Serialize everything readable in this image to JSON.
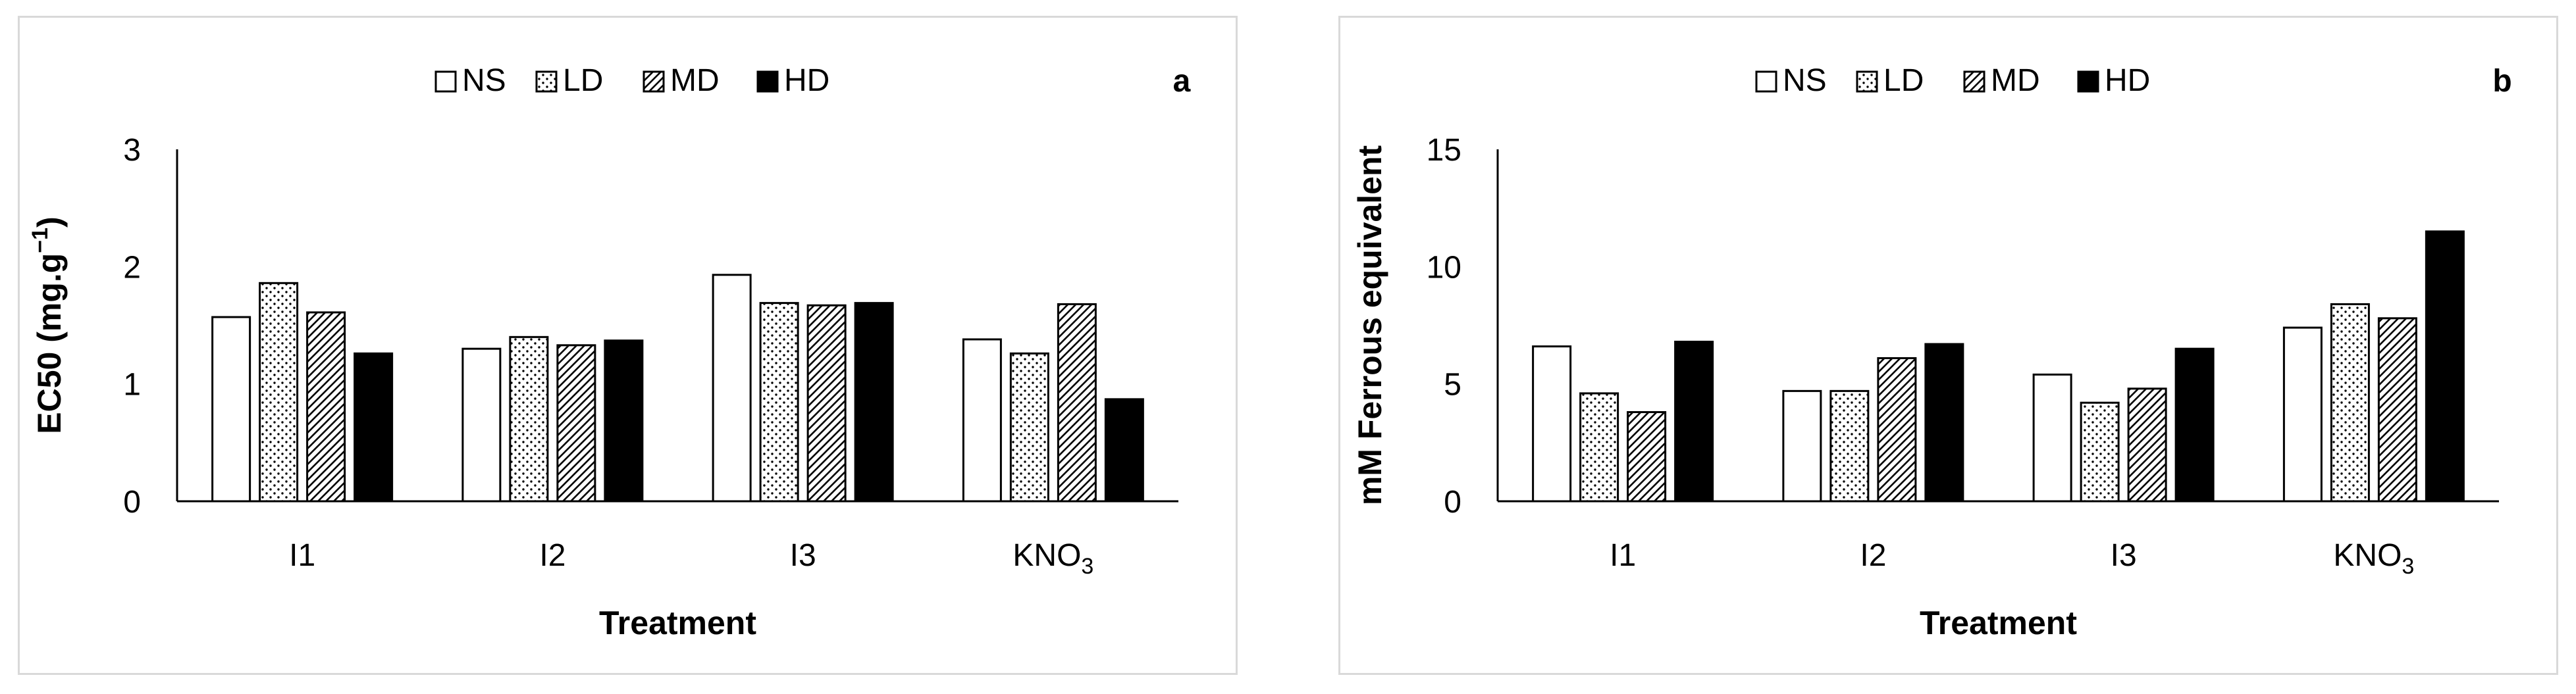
{
  "chart_data": [
    {
      "type": "bar",
      "panel_label": "a",
      "title": "",
      "xlabel": "Treatment",
      "ylabel_main": "EC50 (mg.g",
      "ylabel_sup": "−1",
      "ylabel_end": ")",
      "ylim": [
        0,
        3
      ],
      "yticks": [
        "0",
        "1",
        "2",
        "3"
      ],
      "yticks_values": [
        0,
        1,
        2,
        3
      ],
      "categories": [
        {
          "main": "I1",
          "sub": ""
        },
        {
          "main": "I2",
          "sub": ""
        },
        {
          "main": "I3",
          "sub": ""
        },
        {
          "main": "KNO",
          "sub": "3"
        }
      ],
      "legend": [
        "NS",
        "LD",
        "MD",
        "HD"
      ],
      "series": [
        {
          "name": "NS",
          "values": [
            1.57,
            1.3,
            1.93,
            1.38
          ]
        },
        {
          "name": "LD",
          "values": [
            1.86,
            1.4,
            1.69,
            1.26
          ]
        },
        {
          "name": "MD",
          "values": [
            1.61,
            1.33,
            1.67,
            1.68
          ]
        },
        {
          "name": "HD",
          "values": [
            1.26,
            1.37,
            1.69,
            0.87
          ]
        }
      ]
    },
    {
      "type": "bar",
      "panel_label": "b",
      "title": "",
      "xlabel": "Treatment",
      "ylabel_main": "mM Ferrous equivalent",
      "ylabel_sup": "",
      "ylabel_end": "",
      "ylim": [
        0,
        15
      ],
      "yticks": [
        "0",
        "5",
        "10",
        "15"
      ],
      "yticks_values": [
        0,
        5,
        10,
        15
      ],
      "categories": [
        {
          "main": "I1",
          "sub": ""
        },
        {
          "main": "I2",
          "sub": ""
        },
        {
          "main": "I3",
          "sub": ""
        },
        {
          "main": "KNO",
          "sub": "3"
        }
      ],
      "legend": [
        "NS",
        "LD",
        "MD",
        "HD"
      ],
      "series": [
        {
          "name": "NS",
          "values": [
            6.6,
            4.7,
            5.4,
            7.4
          ]
        },
        {
          "name": "LD",
          "values": [
            4.6,
            4.7,
            4.2,
            8.4
          ]
        },
        {
          "name": "MD",
          "values": [
            3.8,
            6.1,
            4.8,
            7.8
          ]
        },
        {
          "name": "HD",
          "values": [
            6.8,
            6.7,
            6.5,
            11.5
          ]
        }
      ]
    }
  ]
}
